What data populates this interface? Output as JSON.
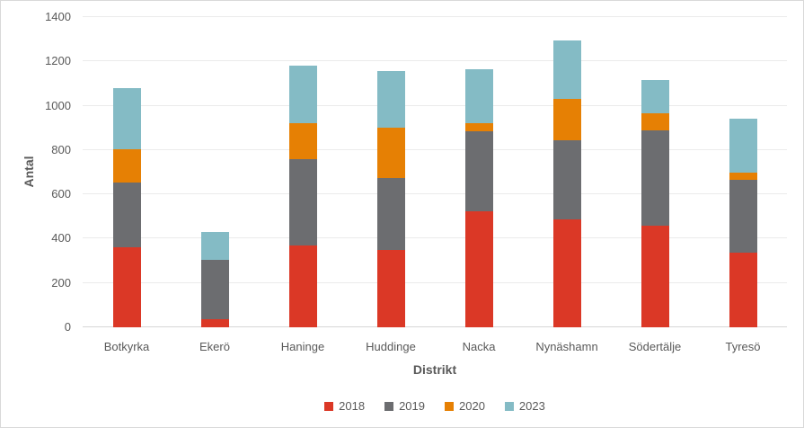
{
  "chart_data": {
    "type": "bar",
    "stacked": true,
    "title": "",
    "xlabel": "Distrikt",
    "ylabel": "Antal",
    "ylim": [
      0,
      1400
    ],
    "yticks": [
      0,
      200,
      400,
      600,
      800,
      1000,
      1200,
      1400
    ],
    "grid": true,
    "legend_position": "bottom",
    "categories": [
      "Botkyrka",
      "Ekerö",
      "Haninge",
      "Huddinge",
      "Nacka",
      "Nynäshamn",
      "Södertälje",
      "Tyresö"
    ],
    "series": [
      {
        "name": "2018",
        "color": "#db3826",
        "values": [
          360,
          35,
          370,
          350,
          525,
          485,
          460,
          335
        ]
      },
      {
        "name": "2019",
        "color": "#6c6d70",
        "values": [
          295,
          270,
          390,
          325,
          360,
          360,
          430,
          330
        ]
      },
      {
        "name": "2020",
        "color": "#e68004",
        "values": [
          150,
          0,
          160,
          225,
          35,
          185,
          75,
          35
        ]
      },
      {
        "name": "2023",
        "color": "#84bbc5",
        "values": [
          275,
          125,
          260,
          255,
          245,
          265,
          150,
          240
        ]
      }
    ]
  },
  "colors": {
    "text": "#595959",
    "gridline": "#ebebeb",
    "axis_line": "#d6d6d6",
    "frame_border": "#d9d9d9",
    "background": "#ffffff"
  }
}
